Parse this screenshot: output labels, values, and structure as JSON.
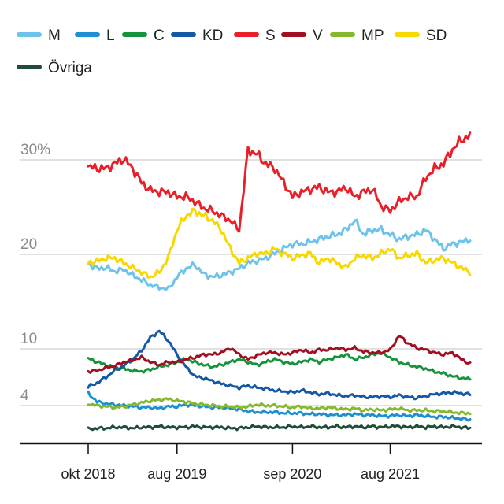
{
  "chart_data": {
    "type": "line",
    "title": "",
    "xlabel": "",
    "ylabel": "",
    "y_ticks": [
      {
        "value": 30,
        "label": "30%"
      },
      {
        "value": 20,
        "label": "20"
      },
      {
        "value": 10,
        "label": "10"
      },
      {
        "value": 4,
        "label": "4"
      }
    ],
    "x_ticks": [
      {
        "value": "2018-10",
        "label": "okt 2018"
      },
      {
        "value": "2019-08",
        "label": "aug 2019"
      },
      {
        "value": "2020-09",
        "label": "sep 2020"
      },
      {
        "value": "2021-08",
        "label": "aug 2021"
      }
    ],
    "xlim": [
      "2018-10",
      "2022-05"
    ],
    "ylim": [
      0,
      36
    ],
    "grid": true,
    "legend_position": "top",
    "x": [
      "2018-10",
      "2018-11",
      "2018-12",
      "2019-01",
      "2019-02",
      "2019-03",
      "2019-04",
      "2019-05",
      "2019-06",
      "2019-07",
      "2019-08",
      "2019-09",
      "2019-10",
      "2019-11",
      "2019-12",
      "2020-01",
      "2020-02",
      "2020-03",
      "2020-04",
      "2020-05",
      "2020-06",
      "2020-07",
      "2020-08",
      "2020-09",
      "2020-10",
      "2020-11",
      "2020-12",
      "2021-01",
      "2021-02",
      "2021-03",
      "2021-04",
      "2021-05",
      "2021-06",
      "2021-07",
      "2021-08",
      "2021-09",
      "2021-10",
      "2021-11",
      "2021-12",
      "2022-01",
      "2022-02",
      "2022-03",
      "2022-04",
      "2022-05"
    ],
    "series": [
      {
        "name": "M",
        "color": "#6ec3ea",
        "values": [
          19,
          18.5,
          18.6,
          18.2,
          18.4,
          17.8,
          17.3,
          16.8,
          16.5,
          16.3,
          17.6,
          18.5,
          18.9,
          17.9,
          17.6,
          17.8,
          18.1,
          18.5,
          19.1,
          19.3,
          19.6,
          20.1,
          20.6,
          21.1,
          21.1,
          21.3,
          21.6,
          21.9,
          22.1,
          22.6,
          23.6,
          22.1,
          22.6,
          22.6,
          22.1,
          21.6,
          21.9,
          22.1,
          22.6,
          21.6,
          20.6,
          21.1,
          21.3,
          21.6
        ]
      },
      {
        "name": "L",
        "color": "#1d8fd2",
        "values": [
          5.3,
          4.4,
          4.2,
          4.1,
          4.0,
          3.9,
          3.8,
          3.8,
          3.7,
          3.9,
          3.9,
          4.1,
          4.0,
          3.9,
          3.8,
          3.8,
          3.7,
          3.6,
          3.4,
          3.3,
          3.3,
          3.3,
          3.2,
          3.2,
          3.2,
          3.1,
          3.1,
          3.0,
          3.0,
          3.0,
          3.1,
          3.0,
          3.0,
          2.9,
          2.9,
          3.0,
          2.9,
          3.0,
          2.9,
          2.8,
          2.8,
          2.7,
          2.6,
          2.5
        ]
      },
      {
        "name": "C",
        "color": "#15943c",
        "values": [
          9.0,
          8.6,
          8.3,
          8.0,
          7.9,
          7.7,
          7.6,
          7.8,
          8.1,
          8.3,
          8.6,
          8.9,
          8.6,
          8.3,
          8.1,
          8.3,
          8.6,
          8.9,
          8.6,
          8.3,
          8.6,
          8.9,
          8.6,
          8.4,
          8.6,
          8.9,
          8.6,
          8.9,
          9.1,
          9.4,
          8.9,
          9.1,
          9.4,
          9.6,
          9.1,
          8.6,
          8.3,
          8.1,
          7.9,
          7.6,
          7.4,
          7.1,
          6.9,
          6.8
        ]
      },
      {
        "name": "KD",
        "color": "#1458a8",
        "values": [
          6.0,
          6.4,
          7.0,
          7.7,
          8.2,
          8.9,
          9.8,
          11.2,
          11.9,
          10.9,
          9.4,
          8.1,
          7.1,
          6.9,
          6.6,
          6.3,
          6.1,
          5.9,
          6.1,
          5.9,
          5.8,
          5.6,
          5.5,
          5.4,
          5.6,
          5.4,
          5.2,
          5.3,
          5.1,
          5.0,
          5.1,
          4.9,
          4.9,
          5.0,
          4.9,
          5.1,
          4.9,
          4.8,
          5.0,
          5.2,
          5.3,
          5.4,
          5.3,
          5.2
        ]
      },
      {
        "name": "S",
        "color": "#e8202a",
        "values": [
          29.3,
          29.1,
          29.1,
          29.6,
          30.1,
          29.1,
          27.6,
          26.8,
          26.6,
          26.6,
          26.1,
          26.1,
          25.6,
          24.9,
          24.6,
          24.1,
          23.6,
          22.6,
          31.1,
          30.6,
          29.6,
          29.1,
          27.6,
          26.1,
          26.6,
          26.9,
          27.1,
          26.6,
          26.6,
          27.1,
          26.1,
          26.6,
          26.9,
          25.1,
          24.6,
          25.6,
          26.1,
          26.1,
          28.1,
          29.1,
          29.6,
          31.1,
          32.1,
          32.6
        ]
      },
      {
        "name": "V",
        "color": "#a10f20",
        "values": [
          7.6,
          7.7,
          8.0,
          8.2,
          8.6,
          8.8,
          9.1,
          8.6,
          8.3,
          8.6,
          8.6,
          8.9,
          9.1,
          9.4,
          9.4,
          9.6,
          10.1,
          9.4,
          8.9,
          9.3,
          9.6,
          9.6,
          9.4,
          9.6,
          9.9,
          9.6,
          9.9,
          9.9,
          10.1,
          9.9,
          10.1,
          9.7,
          9.6,
          9.6,
          9.9,
          11.4,
          10.6,
          10.1,
          9.9,
          9.6,
          9.4,
          9.6,
          8.9,
          8.4
        ]
      },
      {
        "name": "MP",
        "color": "#84b92e",
        "values": [
          4.2,
          4.0,
          3.9,
          3.8,
          3.9,
          4.1,
          4.3,
          4.5,
          4.6,
          4.7,
          4.5,
          4.4,
          4.2,
          4.1,
          4.0,
          3.9,
          3.9,
          3.8,
          3.9,
          4.1,
          4.0,
          4.0,
          3.9,
          3.8,
          3.9,
          3.7,
          3.7,
          3.8,
          3.7,
          3.6,
          3.7,
          3.5,
          3.6,
          3.5,
          3.6,
          3.7,
          3.5,
          3.5,
          3.5,
          3.4,
          3.4,
          3.3,
          3.2,
          3.2
        ]
      },
      {
        "name": "SD",
        "color": "#f7d800",
        "values": [
          19.1,
          19.3,
          19.6,
          19.6,
          19.1,
          18.6,
          18.1,
          17.6,
          18.1,
          19.6,
          22.6,
          24.1,
          24.6,
          24.1,
          23.6,
          22.6,
          20.6,
          19.1,
          19.6,
          20.1,
          20.1,
          20.6,
          20.1,
          19.6,
          19.9,
          20.1,
          19.1,
          19.6,
          19.1,
          18.6,
          19.6,
          19.9,
          19.6,
          20.1,
          20.6,
          19.6,
          19.9,
          20.1,
          19.1,
          19.4,
          19.6,
          19.1,
          18.6,
          18.1
        ]
      },
      {
        "name": "Övriga",
        "color": "#1f4d39",
        "values": [
          1.5,
          1.6,
          1.6,
          1.7,
          1.7,
          1.6,
          1.7,
          1.7,
          1.8,
          1.7,
          1.7,
          1.7,
          1.8,
          1.7,
          1.7,
          1.7,
          1.6,
          1.6,
          1.7,
          1.8,
          1.7,
          1.7,
          1.7,
          1.8,
          1.7,
          1.8,
          1.7,
          1.7,
          1.8,
          1.7,
          1.8,
          1.7,
          1.8,
          1.7,
          1.8,
          1.8,
          1.7,
          1.8,
          1.7,
          1.8,
          1.7,
          1.8,
          1.7,
          1.6
        ]
      }
    ]
  },
  "colors": {
    "gridline": "#cfcfcf",
    "baseline": "#111111",
    "tick_label": "#8a8a8a"
  }
}
